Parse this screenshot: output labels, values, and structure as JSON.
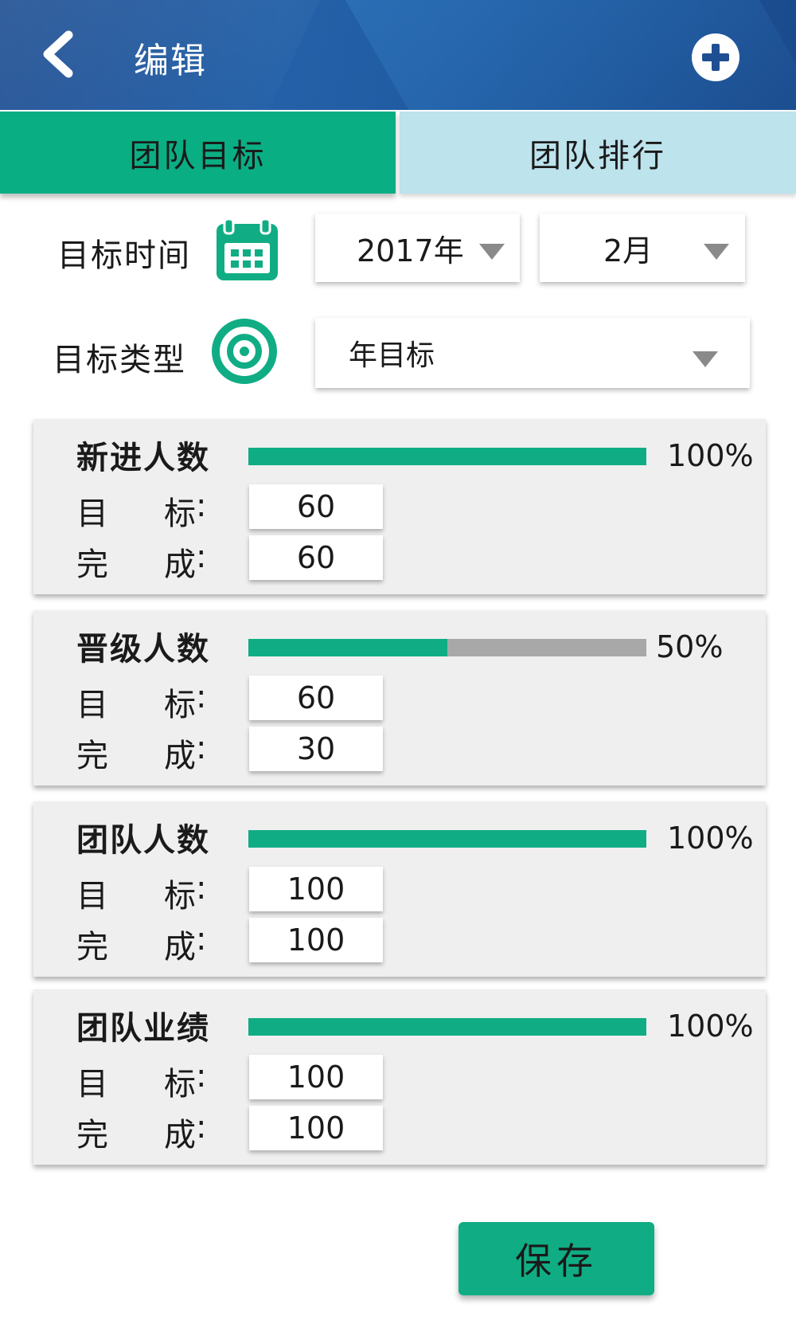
{
  "header": {
    "title": "编辑"
  },
  "tabs": [
    {
      "label": "团队目标",
      "active": true
    },
    {
      "label": "团队排行",
      "active": false
    }
  ],
  "filters": {
    "time_label": "目标时间",
    "year": "2017年",
    "month": "2月",
    "type_label": "目标类型",
    "type_value": "年目标"
  },
  "colors": {
    "header": "#2461a8",
    "accent": "#10ad84",
    "tab_inactive": "#bde3ec"
  },
  "metrics": [
    {
      "title": "新进人数",
      "progress_percent": 100,
      "percent_label": "100%",
      "target_label": "目",
      "target_label2": "标",
      "done_label": "完",
      "done_label2": "成",
      "colon": ":",
      "target": "60",
      "done": "60"
    },
    {
      "title": "晋级人数",
      "progress_percent": 50,
      "percent_label": "50%",
      "target_label": "目",
      "target_label2": "标",
      "done_label": "完",
      "done_label2": "成",
      "colon": ":",
      "target": "60",
      "done": "30"
    },
    {
      "title": "团队人数",
      "progress_percent": 100,
      "percent_label": "100%",
      "target_label": "目",
      "target_label2": "标",
      "done_label": "完",
      "done_label2": "成",
      "colon": ":",
      "target": "100",
      "done": "100"
    },
    {
      "title": "团队业绩",
      "progress_percent": 100,
      "percent_label": "100%",
      "target_label": "目",
      "target_label2": "标",
      "done_label": "完",
      "done_label2": "成",
      "colon": ":",
      "target": "100",
      "done": "100"
    }
  ],
  "save_label": "保存"
}
